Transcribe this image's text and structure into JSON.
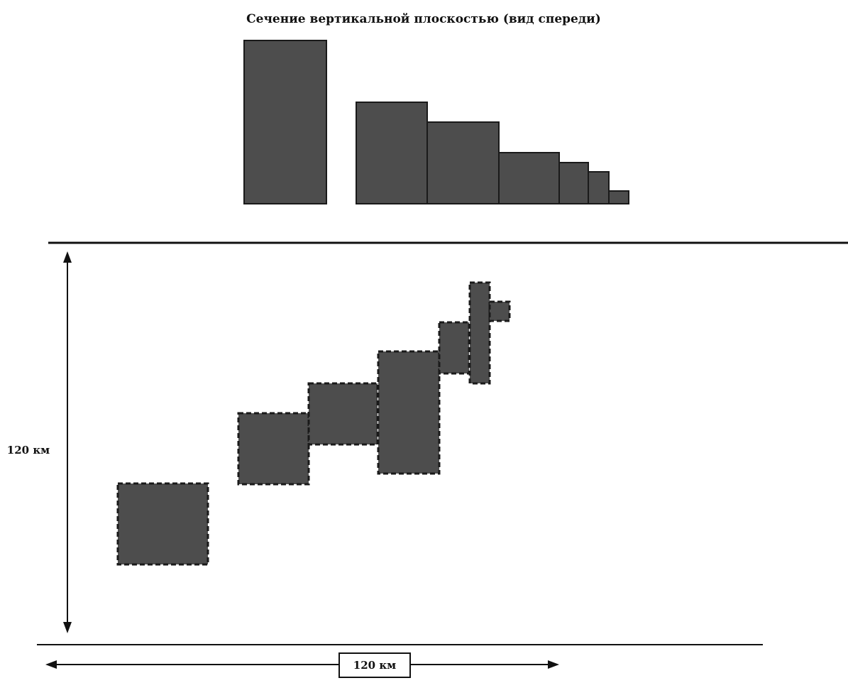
{
  "title": "Сечение вертикальной плоскостью (вид спереди)",
  "vertical_dimension_label": "120 км",
  "horizontal_dimension_label": "120 км"
}
